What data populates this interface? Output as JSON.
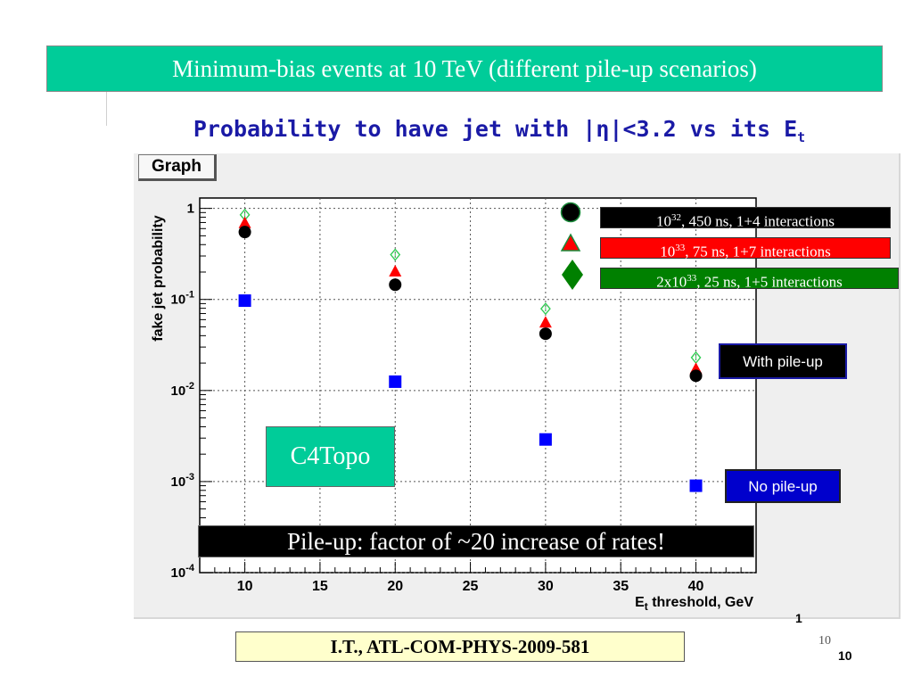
{
  "slide": {
    "title": "Minimum-bias events at 10 TeV (different pile-up scenarios)",
    "subtitle_main": "Probability to have jet with |η|<3.2 vs its E",
    "subtitle_sub": "t",
    "reference": "I.T., ATL-COM-PHYS-2009-581",
    "page_small": "1",
    "page_serif": "10",
    "page_bold": "10"
  },
  "colors": {
    "title_bg": "#00cc99",
    "subtitle": "#1a1aa6",
    "series_1e32": "#000000",
    "series_1e33": "#ff0000",
    "series_2e33": "#33cc55",
    "no_pileup": "#0000ff",
    "legend_green": "#008000",
    "legend_red": "#ff0000",
    "box_blue": "#0000cc"
  },
  "legend": [
    {
      "pre": "10",
      "sup": "32",
      "post": ", 450 ns, 1+4 interactions"
    },
    {
      "pre": "10",
      "sup": "33",
      "post": ", 75 ns, 1+7 interactions"
    },
    {
      "pre": "2x10",
      "sup": "33",
      "post": ", 25 ns, 1+5 interactions"
    }
  ],
  "labels": {
    "with_pileup": "With pile-up",
    "no_pileup": "No pile-up",
    "c4topo": "C4Topo",
    "banner": "Pile-up: factor of ~20 increase of rates!"
  },
  "chart_data": {
    "type": "scatter",
    "title": "Graph",
    "xlabel_main": "E",
    "xlabel_sub": "t",
    "xlabel_rest": " threshold, GeV",
    "ylabel": "fake jet probability",
    "xlim": [
      7,
      44
    ],
    "ylim": [
      0.0001,
      1.3
    ],
    "log_y": true,
    "x_ticks": [
      10,
      15,
      20,
      25,
      30,
      35,
      40
    ],
    "y_ticks": [
      {
        "value": 1,
        "base": "1",
        "exp": ""
      },
      {
        "value": 0.1,
        "base": "10",
        "exp": "-1"
      },
      {
        "value": 0.01,
        "base": "10",
        "exp": "-2"
      },
      {
        "value": 0.001,
        "base": "10",
        "exp": "-3"
      },
      {
        "value": 0.0001,
        "base": "10",
        "exp": "-4"
      }
    ],
    "x": [
      10,
      20,
      30,
      40
    ],
    "series": [
      {
        "key": "1e32",
        "marker": "circle",
        "values": [
          0.55,
          0.145,
          0.042,
          0.0145
        ]
      },
      {
        "key": "1e33",
        "marker": "triangle",
        "values": [
          0.68,
          0.2,
          0.055,
          0.017
        ]
      },
      {
        "key": "2e33",
        "marker": "diamond",
        "values": [
          0.85,
          0.31,
          0.079,
          0.023
        ]
      },
      {
        "key": "nopileup",
        "marker": "square",
        "values": [
          0.097,
          0.0125,
          0.0029,
          0.0009
        ]
      }
    ]
  }
}
